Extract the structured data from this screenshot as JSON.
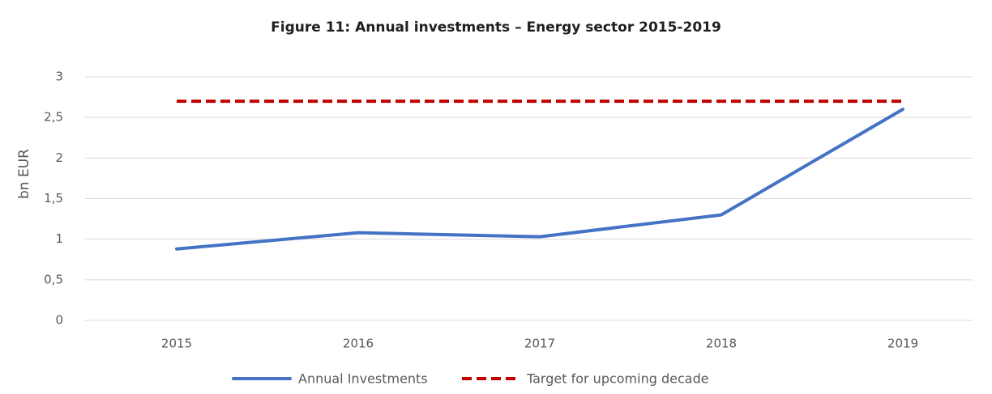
{
  "chart_data": {
    "type": "line",
    "title": "Figure 11: Annual investments – Energy sector 2015-2019",
    "y_label": "bn EUR",
    "categories": [
      "2015",
      "2016",
      "2017",
      "2018",
      "2019"
    ],
    "series": [
      {
        "name": "Annual Investments",
        "color": "#4472c4",
        "dash": false,
        "values": [
          0.88,
          1.08,
          1.03,
          1.3,
          2.6
        ]
      },
      {
        "name": "Target for upcoming decade",
        "color": "#c00000",
        "dash": true,
        "values": [
          2.7,
          2.7,
          2.7,
          2.7,
          2.7
        ]
      }
    ],
    "ylim": [
      0,
      3
    ],
    "yticks": [
      0,
      {
        "value": 0.5,
        "label": "0,5"
      },
      1,
      {
        "value": 1.5,
        "label": "1,5"
      },
      2,
      {
        "value": 2.5,
        "label": "2,5"
      },
      3
    ],
    "grid": true,
    "legend": "bottom"
  }
}
